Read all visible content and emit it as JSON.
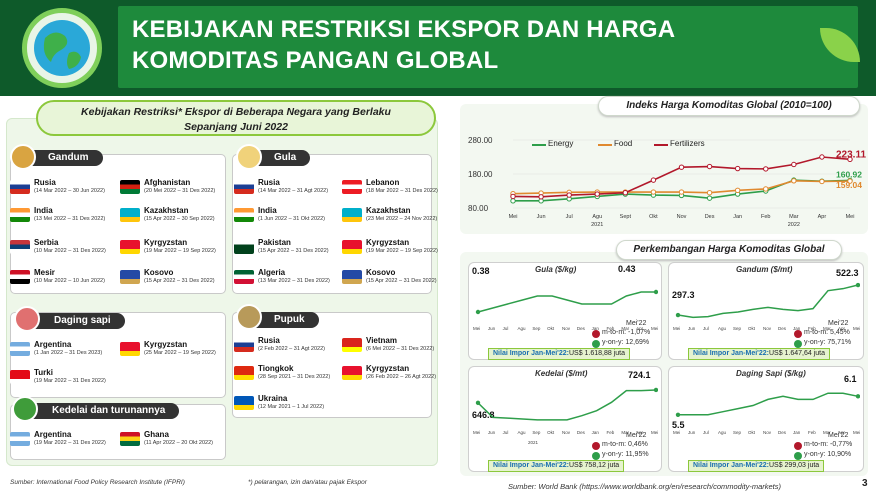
{
  "header": {
    "title_line1": "KEBIJAKAN RESTRIKSI EKSPOR DAN HARGA",
    "title_line2": "KOMODITAS PANGAN GLOBAL"
  },
  "left": {
    "title_line1": "Kebijakan Restriksi* Ekspor di Beberapa Negara yang Berlaku",
    "title_line2": "Sepanjang Juni 2022",
    "gandum": {
      "label": "Gandum",
      "items": [
        {
          "c": "Rusia",
          "d": "(14 Mar 2022 – 30 Jun 2022)"
        },
        {
          "c": "Afghanistan",
          "d": "(20 Mei 2022 – 31 Des 2022)"
        },
        {
          "c": "India",
          "d": "(13 Mei 2022 – 31 Des 2022)"
        },
        {
          "c": "Kazakhstan",
          "d": "(15 Apr 2022 – 30 Sep 2022)"
        },
        {
          "c": "Serbia",
          "d": "(10 Mar 2022 – 31 Des 2022)"
        },
        {
          "c": "Kyrgyzstan",
          "d": "(19 Mar 2022 – 19 Sep 2022)"
        },
        {
          "c": "Mesir",
          "d": "(10 Mar 2022 – 10 Jun 2022)"
        },
        {
          "c": "Kosovo",
          "d": "(15 Apr 2022 – 31 Des 2022)"
        }
      ]
    },
    "gula": {
      "label": "Gula",
      "items": [
        {
          "c": "Rusia",
          "d": "(14 Mar 2022 – 31 Agt 2022)"
        },
        {
          "c": "Lebanon",
          "d": "(18 Mar 2022 – 31 Des 2022)"
        },
        {
          "c": "India",
          "d": "(1 Jun 2022 – 31 Okt 2022)"
        },
        {
          "c": "Kazakhstan",
          "d": "(23 Mei 2022 – 24 Nov 2022)"
        },
        {
          "c": "Pakistan",
          "d": "(15 Apr 2022 – 31 Des 2022)"
        },
        {
          "c": "Kyrgyzstan",
          "d": "(19 Mar 2022 – 19 Sep 2022)"
        },
        {
          "c": "Algeria",
          "d": "(13 Mar 2022 – 31 Des 2022)"
        },
        {
          "c": "Kosovo",
          "d": "(15 Apr 2022 – 31 Des 2022)"
        }
      ]
    },
    "daging": {
      "label": "Daging sapi",
      "items": [
        {
          "c": "Argentina",
          "d": "(1 Jan 2022 – 31 Des 2023)"
        },
        {
          "c": "Kyrgyzstan",
          "d": "(25 Mar 2022 – 19 Sep 2022)"
        },
        {
          "c": "Turki",
          "d": "(19 Mar 2022 – 31 Des 2022)"
        }
      ]
    },
    "pupuk": {
      "label": "Pupuk",
      "items": [
        {
          "c": "Rusia",
          "d": "(2 Feb 2022 – 31 Agt 2022)"
        },
        {
          "c": "Vietnam",
          "d": "(6 Mei 2022 – 31 Des 2022)"
        },
        {
          "c": "Tiongkok",
          "d": "(28 Sep 2021 – 31 Des 2022)"
        },
        {
          "c": "Kyrgyzstan",
          "d": "(26 Feb 2022 – 26 Agt 2022)"
        },
        {
          "c": "Ukraina",
          "d": "(12 Mar 2021 – 1 Jul 2022)"
        }
      ]
    },
    "kedelai": {
      "label": "Kedelai dan turunannya",
      "items": [
        {
          "c": "Argentina",
          "d": "(19 Mar 2022 – 31 Des 2022)"
        },
        {
          "c": "Ghana",
          "d": "(11 Apr 2022 – 20 Okt 2022)"
        }
      ]
    },
    "source": "Sumber: International Food Policy Research Institute (IFPRI)",
    "footnote": "*) pelarangan, izin dan/atau pajak Ekspor"
  },
  "index": {
    "title": "Indeks Harga Komoditas Global (2010=100)",
    "legend": [
      "Energy",
      "Food",
      "Fertilizers"
    ],
    "yticks": [
      "280.00",
      "180.00",
      "80.00"
    ],
    "months": [
      "Mei",
      "Jun",
      "Jul",
      "Agu",
      "Sept",
      "Okt",
      "Nov",
      "Des",
      "Jan",
      "Feb",
      "Mar",
      "Apr",
      "Mei"
    ],
    "years": [
      "2021",
      "2022"
    ],
    "last_labels": [
      "223.11",
      "160.92",
      "159.04"
    ]
  },
  "perk": {
    "title": "Perkembangan Harga Komoditas Global",
    "months": [
      "Mei",
      "Jun",
      "Jul",
      "Agu",
      "Sep",
      "Okt",
      "Nov",
      "Des",
      "Jan",
      "Feb",
      "Mar",
      "Apr",
      "Mei"
    ],
    "gula": {
      "t": "Gula ($/kg)",
      "start": "0.38",
      "end": "0.43",
      "period": "Mei'22",
      "mtm": "m-to-m: -1,07%",
      "yoy": "y-on-y: 12,69%",
      "imp_label": "Nilai Impor Jan-Mei'22:",
      "imp_val": "US$ 1.618,88 juta"
    },
    "gandum": {
      "t": "Gandum ($/mt)",
      "start": "297.3",
      "end": "522.3",
      "period": "Mei'22",
      "mtm": "m-to-m: 5,45%",
      "yoy": "y-on-y: 75,71%",
      "imp_label": "Nilai Impor Jan-Mei'22:",
      "imp_val": "US$ 1.647,64 juta"
    },
    "kedelai": {
      "t": "Kedelai ($/mt)",
      "start": "646.8",
      "end": "724.1",
      "period": "Mei'22",
      "mtm": "m-to-m: 0,46%",
      "yoy": "y-on-y: 11,95%",
      "imp_label": "Nilai Impor Jan-Mei'22:",
      "imp_val": "US$ 758,12 juta",
      "year": "2021"
    },
    "daging": {
      "t": "Daging Sapi ($/kg)",
      "start": "5.5",
      "end": "6.1",
      "period": "Mei'22",
      "mtm": "m-to-m: -0,77%",
      "yoy": "y-on-y: 10,90%",
      "imp_label": "Nilai Impor Jan-Mei'22:",
      "imp_val": "US$ 299,03 juta"
    }
  },
  "source_right": "Sumber: World Bank (https://www.worldbank.org/en/research/commodity-markets)",
  "page": "3",
  "chart_data": [
    {
      "type": "line",
      "title": "Indeks Harga Komoditas Global (2010=100)",
      "categories": [
        "Mei 2021",
        "Jun",
        "Jul",
        "Agu",
        "Sept",
        "Okt",
        "Nov",
        "Des",
        "Jan 2022",
        "Feb",
        "Mar",
        "Apr",
        "Mei"
      ],
      "series": [
        {
          "name": "Energy",
          "color": "#2e9e4a",
          "values": [
            101,
            101,
            107,
            114,
            121,
            118,
            117,
            109,
            121,
            130,
            162,
            159,
            160.92
          ]
        },
        {
          "name": "Food",
          "color": "#e0892f",
          "values": [
            122,
            124,
            126,
            127,
            127,
            127,
            127,
            125,
            132,
            136,
            160,
            158,
            159.04
          ]
        },
        {
          "name": "Fertilizers",
          "color": "#b2182b",
          "values": [
            114,
            113,
            118,
            121,
            125,
            162,
            200,
            202,
            196,
            195,
            208,
            230,
            223.11
          ]
        }
      ],
      "ylim": [
        80,
        280
      ]
    },
    {
      "type": "line",
      "title": "Gula ($/kg)",
      "values": [
        0.38,
        0.39,
        0.4,
        0.41,
        0.42,
        0.42,
        0.41,
        0.4,
        0.4,
        0.4,
        0.42,
        0.43,
        0.43
      ]
    },
    {
      "type": "line",
      "title": "Gandum ($/mt)",
      "values": [
        297.3,
        280,
        285,
        310,
        320,
        340,
        355,
        340,
        330,
        345,
        480,
        495,
        522.3
      ]
    },
    {
      "type": "line",
      "title": "Kedelai ($/mt)",
      "values": [
        646.8,
        560,
        555,
        550,
        545,
        545,
        545,
        570,
        600,
        650,
        720,
        720,
        724.1
      ]
    },
    {
      "type": "line",
      "title": "Daging Sapi ($/kg)",
      "values": [
        5.5,
        5.5,
        5.5,
        5.6,
        5.7,
        5.8,
        6.0,
        6.1,
        6.0,
        6.0,
        6.2,
        6.2,
        6.1
      ]
    }
  ]
}
